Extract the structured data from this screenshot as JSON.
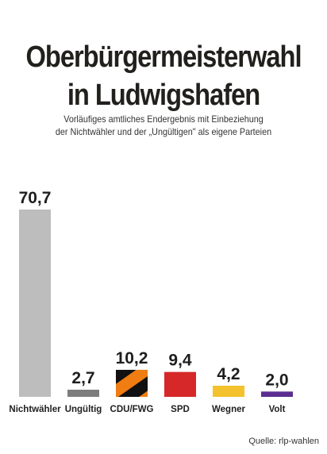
{
  "title_line1": "Oberbürgermeisterwahl",
  "title_line2": "in Ludwigshafen",
  "subtitle_line1": "Vorläufiges amtliches Endergebnis mit Einbeziehung",
  "subtitle_line2": "der Nichtwähler und der „Ungültigen\" als eigene Parteien",
  "source": "Quelle: rlp-wahlen",
  "chart_data": {
    "type": "bar",
    "categories": [
      "Nichtwähler",
      "Ungültig",
      "CDU/FWG",
      "SPD",
      "Wegner",
      "Volt"
    ],
    "values": [
      70.7,
      2.7,
      10.2,
      9.4,
      4.2,
      2.0
    ],
    "value_labels": [
      "70,7",
      "2,7",
      "10,2",
      "9,4",
      "4,2",
      "2,0"
    ],
    "colors": [
      "#bdbdbd",
      "#7d7d7d",
      [
        "#111111",
        "#ef7d11"
      ],
      "#d62828",
      "#f3c22c",
      "#5c2d91"
    ],
    "ylim": [
      0,
      70.7
    ],
    "grid": false,
    "legend": "none"
  }
}
